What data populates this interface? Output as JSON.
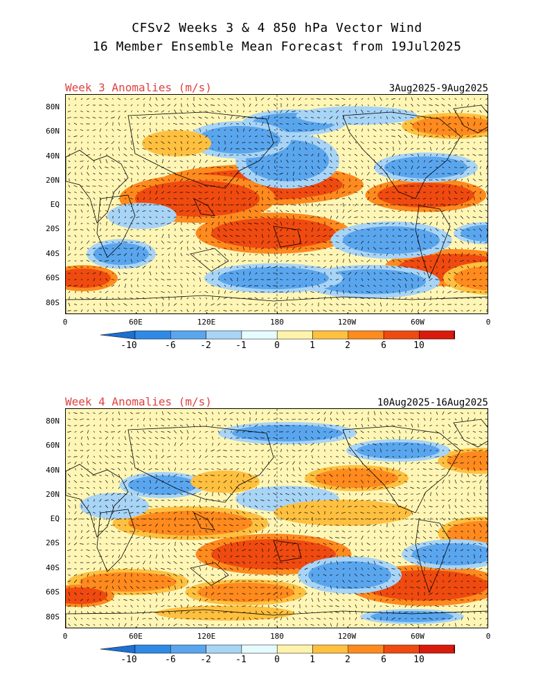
{
  "header": {
    "title_line1": "CFSv2 Weeks 3 & 4 850 hPa Vector Wind",
    "title_line2": "16 Member Ensemble Mean Forecast from 19Jul2025"
  },
  "panels": [
    {
      "title": "Week 3 Anomalies (m/s)",
      "date_range": "3Aug2025-9Aug2025"
    },
    {
      "title": "Week 4 Anomalies (m/s)",
      "date_range": "10Aug2025-16Aug2025"
    }
  ],
  "axes": {
    "lat_labels": [
      "80N",
      "60N",
      "40N",
      "20N",
      "EQ",
      "20S",
      "40S",
      "60S",
      "80S"
    ],
    "lon_labels": [
      "0",
      "60E",
      "120E",
      "180",
      "120W",
      "60W",
      "0"
    ]
  },
  "colorbar": {
    "labels": [
      "-10",
      "-6",
      "-2",
      "-1",
      "0",
      "1",
      "2",
      "6",
      "10"
    ],
    "colors": [
      "#1e6fd0",
      "#2f8ae6",
      "#5aa6ee",
      "#a8d4f6",
      "#e6fbff",
      "#fff3ab",
      "#ffc040",
      "#ff8a1e",
      "#ef4a10",
      "#d81b0c",
      "#a80a06"
    ]
  },
  "colors": {
    "title_red": "#e04040",
    "land_outline": "#000000"
  }
}
